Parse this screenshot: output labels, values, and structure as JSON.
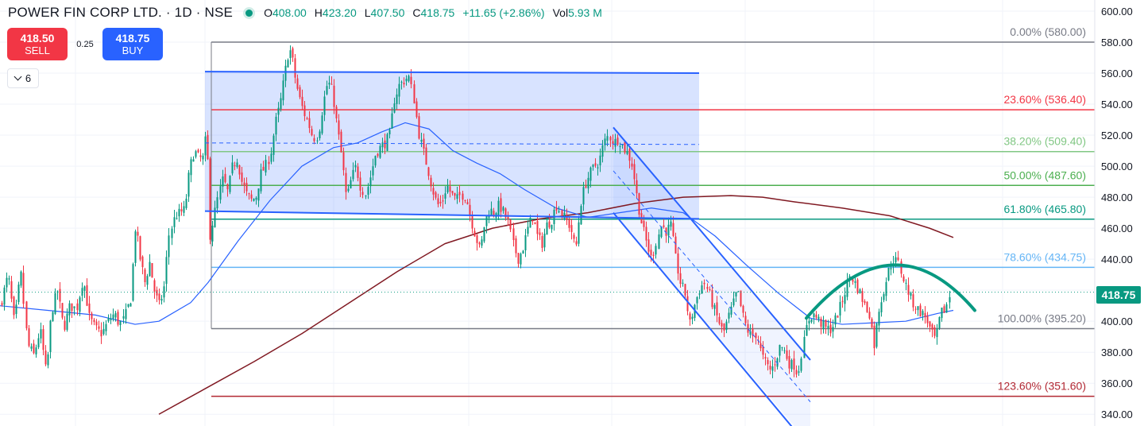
{
  "header": {
    "symbol": "POWER FIN CORP LTD. · 1D · NSE",
    "ohlc": [
      {
        "key": "O",
        "value": "408.00"
      },
      {
        "key": "H",
        "value": "423.20"
      },
      {
        "key": "L",
        "value": "407.50"
      },
      {
        "key": "C",
        "value": "418.75"
      },
      {
        "key": "",
        "value": "+11.65 (+2.86%)"
      },
      {
        "key": "Vol",
        "value": "5.93 M"
      }
    ]
  },
  "trade": {
    "sell_price": "418.50",
    "sell_label": "SELL",
    "spread": "0.25",
    "buy_price": "418.75",
    "buy_label": "BUY"
  },
  "indicator_toggle": {
    "count": "6"
  },
  "last_price": "418.75",
  "colors": {
    "up": "#089981",
    "down": "#f23645",
    "channel": "#2962ff",
    "ma_short": "#2962ff",
    "ma_long": "#801922",
    "arc": "#089981"
  },
  "chart_data": {
    "type": "candlestick",
    "y_axis": {
      "min": 336,
      "max": 612,
      "ticks": [
        "600.00",
        "580.00",
        "560.00",
        "540.00",
        "520.00",
        "500.00",
        "480.00",
        "460.00",
        "440.00",
        "420.00",
        "400.00",
        "380.00",
        "360.00",
        "340.00"
      ]
    },
    "fibonacci": [
      {
        "label": "0.00% (580.00)",
        "level": 580.0,
        "color": "#787b86"
      },
      {
        "label": "23.60% (536.40)",
        "level": 536.4,
        "color": "#f23645"
      },
      {
        "label": "38.20% (509.40)",
        "level": 509.4,
        "color": "#81c784"
      },
      {
        "label": "50.00% (487.60)",
        "level": 487.6,
        "color": "#4caf50"
      },
      {
        "label": "61.80% (465.80)",
        "level": 465.8,
        "color": "#089981"
      },
      {
        "label": "78.60% (434.75)",
        "level": 434.75,
        "color": "#64b5f6"
      },
      {
        "label": "100.00% (395.20)",
        "level": 395.2,
        "color": "#787b86"
      },
      {
        "label": "123.60% (351.60)",
        "level": 351.6,
        "color": "#b22833"
      }
    ],
    "ohlc_anchors": [
      [
        0,
        410
      ],
      [
        10,
        430
      ],
      [
        18,
        398
      ],
      [
        26,
        432
      ],
      [
        34,
        385
      ],
      [
        42,
        378
      ],
      [
        50,
        395
      ],
      [
        58,
        365
      ],
      [
        64,
        405
      ],
      [
        72,
        420
      ],
      [
        80,
        395
      ],
      [
        88,
        410
      ],
      [
        96,
        408
      ],
      [
        104,
        428
      ],
      [
        112,
        402
      ],
      [
        120,
        395
      ],
      [
        128,
        392
      ],
      [
        136,
        400
      ],
      [
        144,
        405
      ],
      [
        150,
        398
      ],
      [
        156,
        402
      ],
      [
        164,
        415
      ],
      [
        170,
        462
      ],
      [
        176,
        440
      ],
      [
        182,
        425
      ],
      [
        188,
        438
      ],
      [
        194,
        420
      ],
      [
        200,
        410
      ],
      [
        206,
        420
      ],
      [
        212,
        455
      ],
      [
        220,
        468
      ],
      [
        226,
        470
      ],
      [
        232,
        472
      ],
      [
        238,
        498
      ],
      [
        244,
        510
      ],
      [
        250,
        505
      ],
      [
        256,
        505
      ],
      [
        260,
        525
      ],
      [
        264,
        455
      ],
      [
        268,
        465
      ],
      [
        274,
        480
      ],
      [
        280,
        492
      ],
      [
        286,
        483
      ],
      [
        292,
        500
      ],
      [
        298,
        505
      ],
      [
        304,
        490
      ],
      [
        310,
        482
      ],
      [
        316,
        478
      ],
      [
        322,
        480
      ],
      [
        328,
        495
      ],
      [
        334,
        500
      ],
      [
        340,
        508
      ],
      [
        346,
        528
      ],
      [
        352,
        540
      ],
      [
        358,
        560
      ],
      [
        362,
        572
      ],
      [
        366,
        575
      ],
      [
        370,
        560
      ],
      [
        376,
        545
      ],
      [
        382,
        535
      ],
      [
        388,
        528
      ],
      [
        394,
        518
      ],
      [
        400,
        520
      ],
      [
        406,
        540
      ],
      [
        412,
        555
      ],
      [
        418,
        548
      ],
      [
        424,
        525
      ],
      [
        430,
        505
      ],
      [
        436,
        478
      ],
      [
        442,
        492
      ],
      [
        448,
        500
      ],
      [
        454,
        486
      ],
      [
        460,
        482
      ],
      [
        466,
        494
      ],
      [
        472,
        508
      ],
      [
        478,
        512
      ],
      [
        484,
        515
      ],
      [
        490,
        520
      ],
      [
        496,
        543
      ],
      [
        502,
        552
      ],
      [
        508,
        555
      ],
      [
        514,
        558
      ],
      [
        520,
        545
      ],
      [
        526,
        522
      ],
      [
        532,
        510
      ],
      [
        538,
        498
      ],
      [
        544,
        485
      ],
      [
        550,
        475
      ],
      [
        556,
        476
      ],
      [
        562,
        488
      ],
      [
        568,
        482
      ],
      [
        574,
        478
      ],
      [
        580,
        482
      ],
      [
        586,
        480
      ],
      [
        592,
        466
      ],
      [
        598,
        455
      ],
      [
        604,
        445
      ],
      [
        610,
        465
      ],
      [
        616,
        472
      ],
      [
        622,
        470
      ],
      [
        628,
        475
      ],
      [
        634,
        470
      ],
      [
        640,
        463
      ],
      [
        646,
        448
      ],
      [
        652,
        440
      ],
      [
        658,
        448
      ],
      [
        664,
        460
      ],
      [
        670,
        468
      ],
      [
        676,
        455
      ],
      [
        682,
        450
      ],
      [
        688,
        462
      ],
      [
        694,
        465
      ],
      [
        700,
        475
      ],
      [
        706,
        470
      ],
      [
        712,
        465
      ],
      [
        718,
        460
      ],
      [
        724,
        445
      ],
      [
        730,
        475
      ],
      [
        736,
        488
      ],
      [
        742,
        495
      ],
      [
        748,
        500
      ],
      [
        754,
        503
      ],
      [
        760,
        515
      ],
      [
        766,
        520
      ],
      [
        772,
        515
      ],
      [
        778,
        518
      ],
      [
        784,
        512
      ],
      [
        790,
        508
      ],
      [
        796,
        500
      ],
      [
        802,
        478
      ],
      [
        808,
        462
      ],
      [
        814,
        450
      ],
      [
        820,
        440
      ],
      [
        826,
        452
      ],
      [
        832,
        462
      ],
      [
        838,
        458
      ],
      [
        844,
        462
      ],
      [
        850,
        440
      ],
      [
        856,
        425
      ],
      [
        862,
        418
      ],
      [
        868,
        398
      ],
      [
        874,
        410
      ],
      [
        880,
        420
      ],
      [
        886,
        425
      ],
      [
        892,
        418
      ],
      [
        898,
        408
      ],
      [
        904,
        400
      ],
      [
        910,
        392
      ],
      [
        916,
        402
      ],
      [
        922,
        410
      ],
      [
        928,
        420
      ],
      [
        934,
        405
      ],
      [
        940,
        395
      ],
      [
        946,
        390
      ],
      [
        952,
        392
      ],
      [
        958,
        378
      ],
      [
        964,
        372
      ],
      [
        970,
        368
      ],
      [
        976,
        375
      ],
      [
        982,
        385
      ],
      [
        988,
        380
      ],
      [
        994,
        372
      ],
      [
        1000,
        372
      ],
      [
        1004,
        365
      ],
      [
        1008,
        378
      ],
      [
        1012,
        388
      ],
      [
        1016,
        400
      ],
      [
        1022,
        405
      ],
      [
        1028,
        402
      ],
      [
        1034,
        398
      ],
      [
        1040,
        395
      ],
      [
        1046,
        395
      ],
      [
        1052,
        402
      ],
      [
        1058,
        410
      ],
      [
        1064,
        420
      ],
      [
        1070,
        430
      ],
      [
        1076,
        424
      ],
      [
        1082,
        418
      ],
      [
        1088,
        410
      ],
      [
        1094,
        405
      ],
      [
        1100,
        385
      ],
      [
        1106,
        408
      ],
      [
        1112,
        420
      ],
      [
        1118,
        432
      ],
      [
        1124,
        440
      ],
      [
        1130,
        438
      ],
      [
        1136,
        428
      ],
      [
        1142,
        420
      ],
      [
        1148,
        412
      ],
      [
        1154,
        408
      ],
      [
        1160,
        405
      ],
      [
        1166,
        402
      ],
      [
        1172,
        392
      ],
      [
        1178,
        388
      ],
      [
        1184,
        405
      ],
      [
        1190,
        408
      ],
      [
        1196,
        418.75
      ]
    ],
    "ma_short": [
      [
        0,
        410
      ],
      [
        60,
        407
      ],
      [
        120,
        404
      ],
      [
        170,
        398
      ],
      [
        200,
        400
      ],
      [
        240,
        412
      ],
      [
        262,
        425
      ],
      [
        300,
        452
      ],
      [
        340,
        478
      ],
      [
        380,
        500
      ],
      [
        420,
        512
      ],
      [
        450,
        515
      ],
      [
        480,
        522
      ],
      [
        510,
        528
      ],
      [
        540,
        524
      ],
      [
        570,
        510
      ],
      [
        600,
        502
      ],
      [
        630,
        495
      ],
      [
        660,
        485
      ],
      [
        700,
        473
      ],
      [
        740,
        467
      ],
      [
        780,
        470
      ],
      [
        820,
        473
      ],
      [
        860,
        470
      ],
      [
        900,
        455
      ],
      [
        940,
        436
      ],
      [
        980,
        418
      ],
      [
        1020,
        402
      ],
      [
        1060,
        398
      ],
      [
        1100,
        399
      ],
      [
        1140,
        400
      ],
      [
        1180,
        405
      ],
      [
        1200,
        407
      ]
    ],
    "ma_long": [
      [
        200,
        340
      ],
      [
        260,
        357
      ],
      [
        320,
        374
      ],
      [
        380,
        392
      ],
      [
        440,
        412
      ],
      [
        500,
        432
      ],
      [
        560,
        450
      ],
      [
        620,
        460
      ],
      [
        680,
        466
      ],
      [
        740,
        470
      ],
      [
        800,
        476
      ],
      [
        860,
        480
      ],
      [
        920,
        481
      ],
      [
        960,
        480
      ],
      [
        1000,
        477
      ],
      [
        1060,
        473
      ],
      [
        1120,
        468
      ],
      [
        1170,
        460
      ],
      [
        1200,
        454
      ]
    ]
  }
}
